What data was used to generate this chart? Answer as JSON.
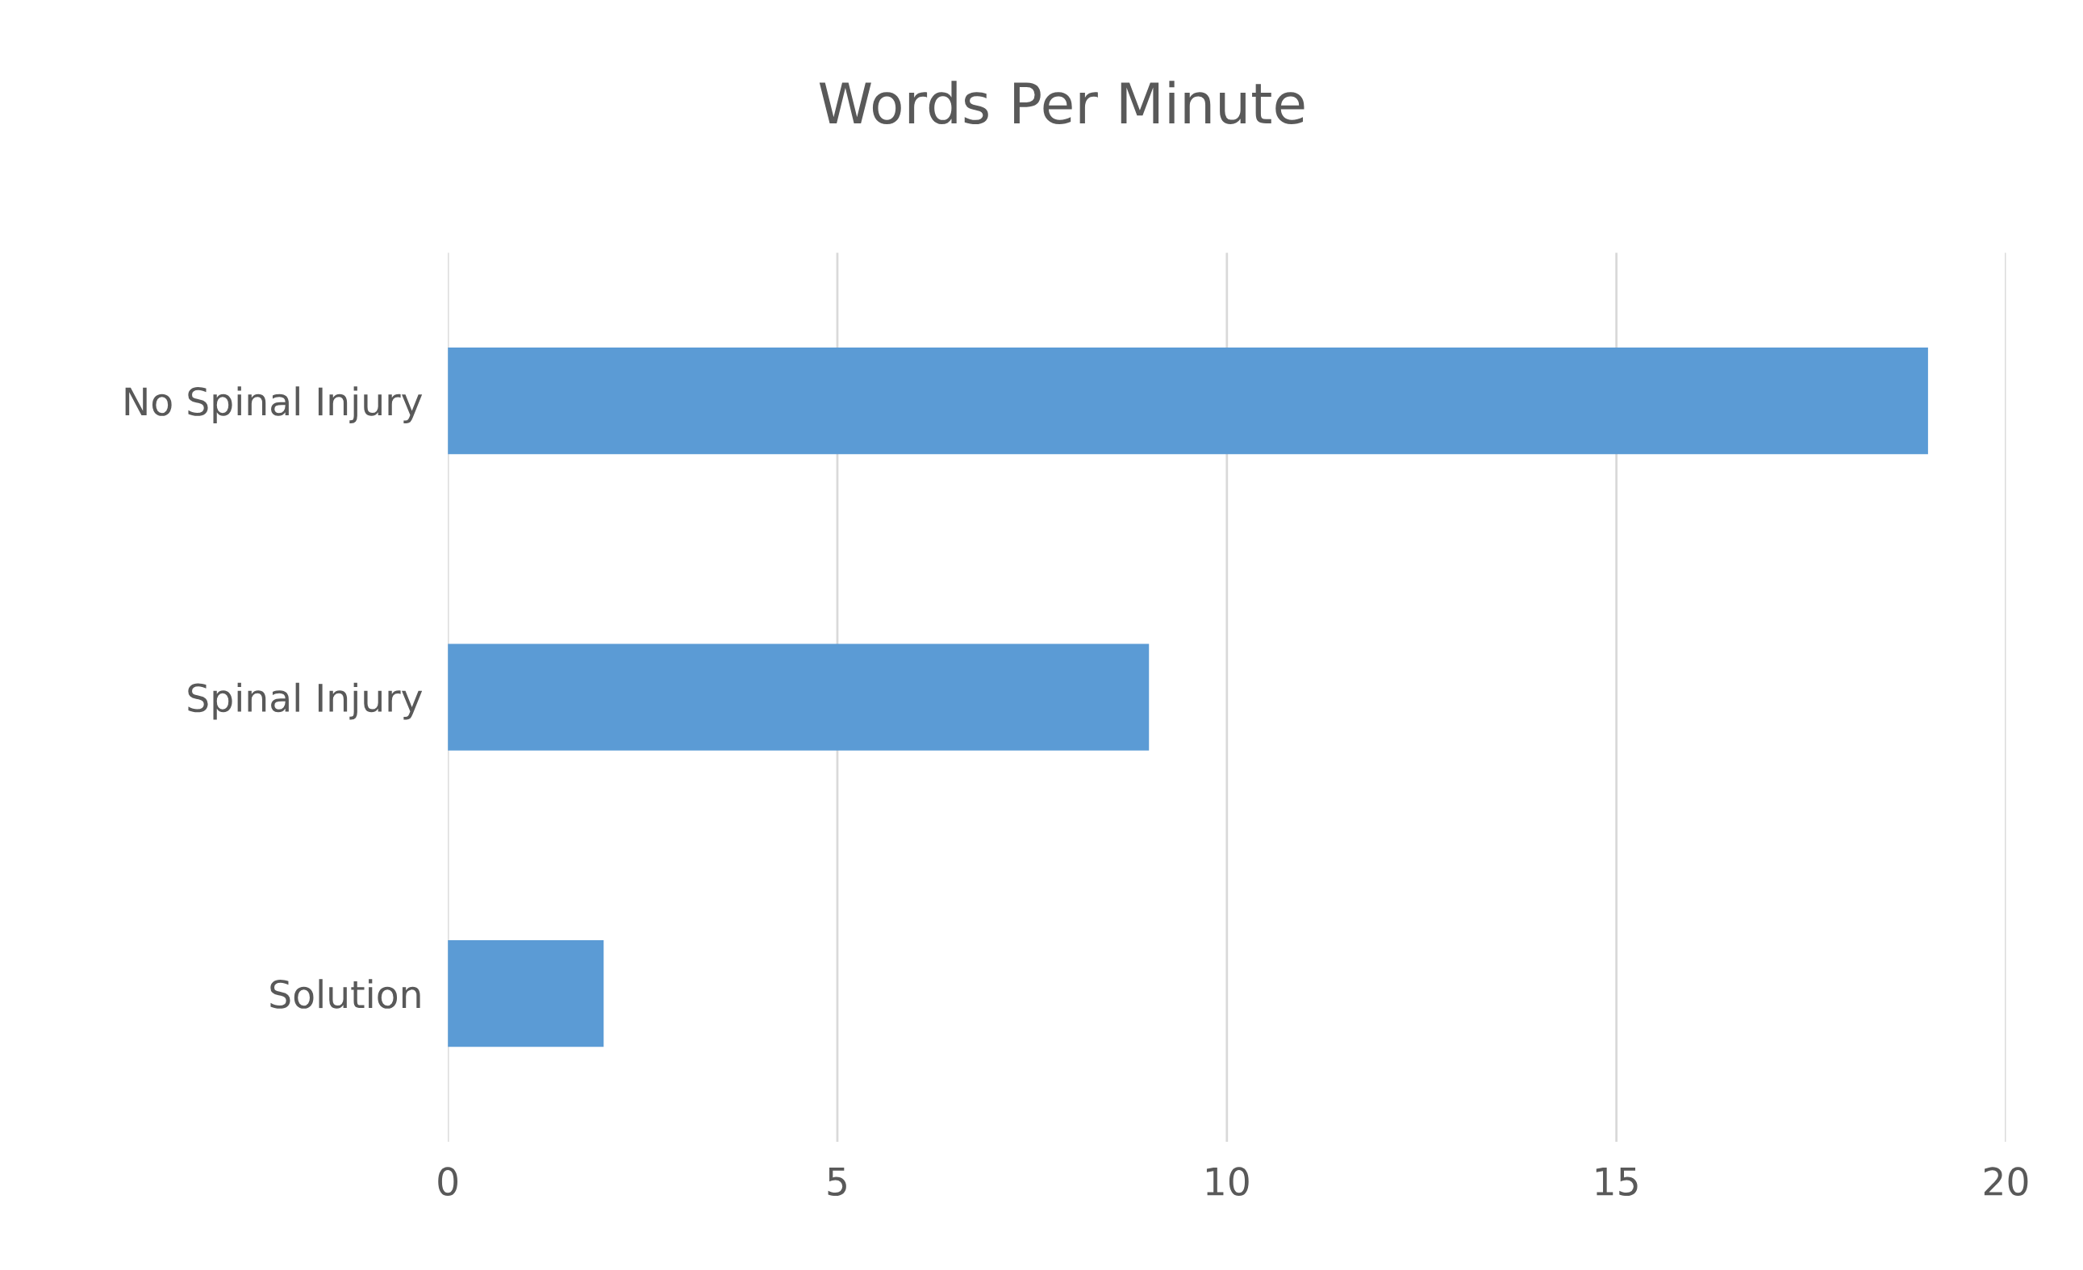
{
  "chart_data": {
    "type": "bar",
    "orientation": "horizontal",
    "title": "Words Per Minute",
    "categories": [
      "No Spinal Injury",
      "Spinal Injury",
      "Solution"
    ],
    "values": [
      19,
      9,
      2
    ],
    "color": "#5b9bd5",
    "xlim": [
      0,
      20
    ],
    "xticks": [
      0,
      5,
      10,
      15,
      20
    ],
    "grid": "x"
  }
}
